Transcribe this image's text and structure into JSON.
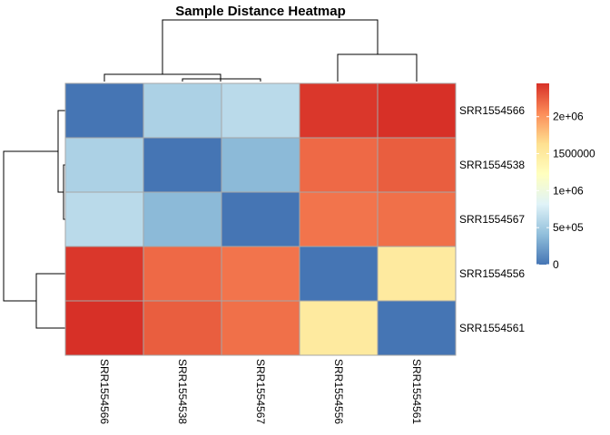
{
  "chart_data": {
    "type": "heatmap",
    "title": "Sample Distance Heatmap",
    "rows": [
      "SRR1554566",
      "SRR1554538",
      "SRR1554567",
      "SRR1554556",
      "SRR1554561"
    ],
    "columns": [
      "SRR1554566",
      "SRR1554538",
      "SRR1554567",
      "SRR1554556",
      "SRR1554561"
    ],
    "values": [
      [
        0,
        550000,
        620000,
        2420000,
        2450000
      ],
      [
        550000,
        0,
        380000,
        2200000,
        2250000
      ],
      [
        620000,
        380000,
        0,
        2150000,
        2170000
      ],
      [
        2420000,
        2200000,
        2150000,
        0,
        1500000
      ],
      [
        2450000,
        2250000,
        2170000,
        1500000,
        0
      ]
    ],
    "color_scale": {
      "min": 0,
      "max": 2450000,
      "stops": [
        "#4575b4",
        "#91bfdb",
        "#e0f3f8",
        "#ffffbf",
        "#fee090",
        "#fc8d59",
        "#d73027"
      ]
    },
    "legend": {
      "position": "right",
      "ticks": [
        {
          "value": 0,
          "label": "0"
        },
        {
          "value": 500000,
          "label": "5e+05"
        },
        {
          "value": 1000000,
          "label": "1e+06"
        },
        {
          "value": 1500000,
          "label": "1500000"
        },
        {
          "value": 2000000,
          "label": "2e+06"
        }
      ]
    },
    "row_dendrogram": "left",
    "column_dendrogram": "top"
  }
}
